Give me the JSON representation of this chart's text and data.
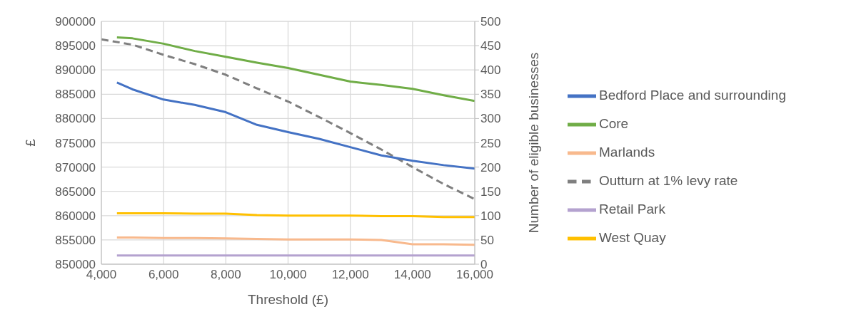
{
  "chart_data": {
    "type": "line",
    "xlabel": "Threshold (£)",
    "ylabel": "£",
    "y2label": "Number of eligible businesses",
    "xlim": [
      4000,
      16000
    ],
    "xticks": [
      {
        "value": 4000,
        "label": "4,000"
      },
      {
        "value": 6000,
        "label": "6,000"
      },
      {
        "value": 8000,
        "label": "8,000"
      },
      {
        "value": 10000,
        "label": "10,000"
      },
      {
        "value": 12000,
        "label": "12,000"
      },
      {
        "value": 14000,
        "label": "14,000"
      },
      {
        "value": 16000,
        "label": "16,000"
      }
    ],
    "ylim": [
      850000,
      900000
    ],
    "yticks": [
      850000,
      855000,
      860000,
      865000,
      870000,
      875000,
      880000,
      885000,
      890000,
      895000,
      900000
    ],
    "y2lim": [
      0,
      500
    ],
    "y2ticks": [
      0,
      50,
      100,
      150,
      200,
      250,
      300,
      350,
      400,
      450,
      500
    ],
    "grid": true,
    "legend": "right",
    "marker": "none",
    "series": [
      {
        "name": "Outturn at 1% levy rate",
        "color": "#7f7f7f",
        "line_style": "dashed",
        "x": [
          4000,
          5000,
          6000,
          7000,
          8000,
          9000,
          10000,
          11000,
          12000,
          13000,
          14000,
          15000,
          16000
        ],
        "values": [
          896300,
          895200,
          893100,
          891200,
          889000,
          886200,
          883500,
          880300,
          877000,
          873600,
          870000,
          866500,
          863400
        ]
      },
      {
        "name": "Bedford Place and surrounding",
        "color": "#4472c4",
        "axis": "y2",
        "x": [
          4500,
          5000,
          6000,
          7000,
          8000,
          9000,
          10000,
          11000,
          12000,
          13000,
          14000,
          15000,
          16000
        ],
        "values": [
          374,
          360,
          339,
          328,
          313,
          287,
          272,
          258,
          241,
          224,
          213,
          204,
          197
        ]
      },
      {
        "name": "West Quay",
        "color": "#ffc000",
        "axis": "y2",
        "x": [
          4500,
          5000,
          6000,
          7000,
          8000,
          9000,
          10000,
          11000,
          12000,
          13000,
          14000,
          15000,
          16000
        ],
        "values": [
          105,
          105,
          105,
          104,
          104,
          101,
          100,
          100,
          100,
          99,
          99,
          97,
          97
        ]
      },
      {
        "name": "Marlands",
        "color": "#f8b98d",
        "axis": "y2",
        "x": [
          4500,
          5000,
          6000,
          7000,
          8000,
          9000,
          10000,
          11000,
          12000,
          13000,
          14000,
          15000,
          16000
        ],
        "values": [
          55,
          55,
          54,
          54,
          53,
          52,
          51,
          51,
          51,
          50,
          41,
          41,
          40
        ]
      },
      {
        "name": "Retail Park",
        "color": "#b4a2cf",
        "axis": "y2",
        "x": [
          4500,
          5000,
          6000,
          7000,
          8000,
          9000,
          10000,
          11000,
          12000,
          13000,
          14000,
          15000,
          16000
        ],
        "values": [
          18,
          18,
          18,
          18,
          18,
          18,
          18,
          18,
          18,
          18,
          18,
          18,
          18
        ]
      },
      {
        "name": "Core",
        "color": "#70ad47",
        "axis": "y2",
        "x": [
          4500,
          5000,
          6000,
          7000,
          8000,
          9000,
          10000,
          11000,
          12000,
          13000,
          14000,
          15000,
          16000
        ],
        "values": [
          467,
          465,
          454,
          439,
          427,
          415,
          404,
          390,
          376,
          369,
          361,
          348,
          336
        ]
      }
    ]
  }
}
